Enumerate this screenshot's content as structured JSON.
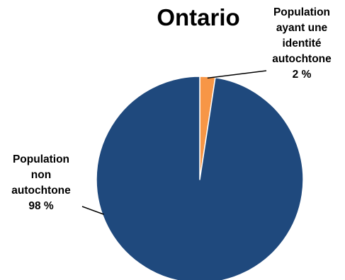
{
  "chart_data": {
    "type": "pie",
    "title": "Ontario",
    "slices": [
      {
        "name": "Population ayant une identité autochtone",
        "label_lines": [
          "Population",
          "ayant une",
          "identité",
          "autochtone"
        ],
        "percent_label": "2 %",
        "value": 2.4,
        "color": "#F79646"
      },
      {
        "name": "Population non autochtone",
        "label_lines": [
          "Population",
          "non",
          "autochtone"
        ],
        "percent_label": "98 %",
        "value": 97.6,
        "color": "#1F497D"
      }
    ],
    "start_angle": "top",
    "direction": "clockwise",
    "slice_border_color": "#FFFFFF"
  }
}
